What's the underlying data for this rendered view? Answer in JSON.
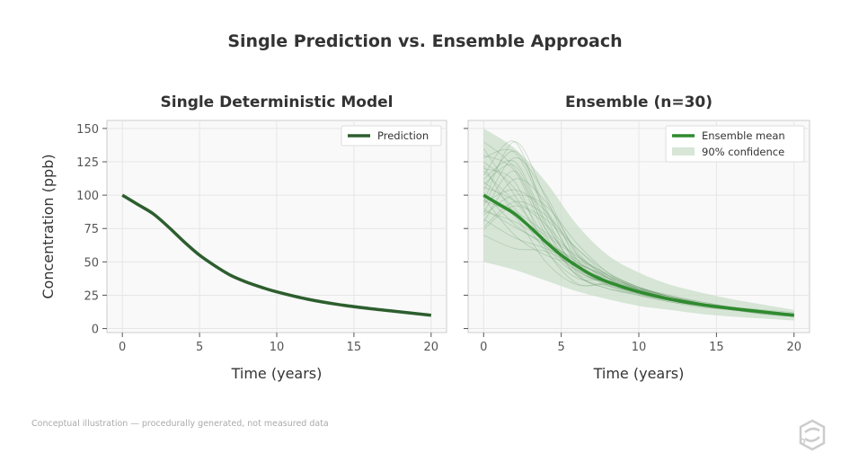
{
  "suptitle": "Single Prediction vs. Ensemble Approach",
  "footnote": "Conceptual illustration — procedurally generated, not measured data",
  "colors": {
    "prediction": "#2d5e2e",
    "ensemble_mean": "#2e8b2e",
    "band": "#c9dec9",
    "members": "#6f9a6f"
  },
  "chart_data": [
    {
      "type": "line",
      "title": "Single Deterministic Model",
      "xlabel": "Time (years)",
      "ylabel": "Concentration (ppb)",
      "xlim": [
        -1,
        21
      ],
      "ylim": [
        -3,
        156
      ],
      "xticks": [
        0,
        5,
        10,
        15,
        20
      ],
      "yticks": [
        0,
        25,
        50,
        75,
        100,
        125,
        150
      ],
      "grid": true,
      "legend": "top-right",
      "series": [
        {
          "name": "Prediction",
          "x": [
            0,
            1,
            2,
            3,
            4,
            5,
            6,
            7,
            8,
            9,
            10,
            12,
            14,
            16,
            18,
            20
          ],
          "y": [
            100,
            93,
            86,
            76,
            65,
            55,
            47,
            40,
            35,
            31,
            27.5,
            22,
            18,
            15,
            12.5,
            10
          ]
        }
      ]
    },
    {
      "type": "line",
      "title": "Ensemble (n=30)",
      "xlabel": "Time (years)",
      "xlim": [
        -1,
        21
      ],
      "ylim": [
        -3,
        156
      ],
      "xticks": [
        0,
        5,
        10,
        15,
        20
      ],
      "yticks": [
        0,
        25,
        50,
        75,
        100,
        125,
        150
      ],
      "grid": true,
      "legend": "top-right",
      "mean": {
        "name": "Ensemble mean",
        "x": [
          0,
          1,
          2,
          3,
          4,
          5,
          6,
          7,
          8,
          9,
          10,
          12,
          14,
          16,
          18,
          20
        ],
        "y": [
          100,
          93,
          86,
          76,
          65,
          55,
          47,
          40,
          35,
          31,
          27.5,
          22,
          18,
          15,
          12.5,
          10
        ]
      },
      "band": {
        "name": "90% confidence",
        "x": [
          0,
          2,
          4,
          6,
          8,
          10,
          12,
          14,
          16,
          18,
          20
        ],
        "upper": [
          150,
          135,
          110,
          78,
          55,
          42,
          33,
          27,
          22,
          18,
          14
        ],
        "lower": [
          50,
          44,
          36,
          28,
          22,
          17,
          14,
          11,
          9,
          7.5,
          6
        ]
      },
      "members_x": [
        0,
        2,
        4,
        6,
        8,
        10,
        12,
        14,
        16,
        18,
        20
      ],
      "members": [
        [
          112,
          125,
          80,
          45,
          34,
          28,
          22,
          18,
          15,
          12,
          10
        ],
        [
          95,
          140,
          98,
          52,
          36,
          27,
          21,
          17,
          14,
          12,
          9
        ],
        [
          130,
          118,
          70,
          40,
          30,
          26,
          21,
          17,
          15,
          13,
          11
        ],
        [
          88,
          80,
          66,
          50,
          38,
          29,
          23,
          19,
          16,
          13,
          10
        ],
        [
          104,
          133,
          90,
          48,
          32,
          25,
          20,
          16,
          14,
          11,
          9
        ],
        [
          76,
          95,
          85,
          60,
          40,
          30,
          24,
          20,
          16,
          13,
          11
        ],
        [
          120,
          110,
          60,
          34,
          33,
          28,
          22,
          18,
          15,
          12,
          10
        ],
        [
          98,
          70,
          55,
          48,
          40,
          31,
          24,
          19,
          15,
          12,
          9
        ],
        [
          140,
          120,
          75,
          44,
          34,
          27,
          22,
          18,
          15,
          13,
          10
        ],
        [
          85,
          100,
          92,
          64,
          42,
          30,
          23,
          18,
          15,
          12,
          10
        ],
        [
          110,
          90,
          58,
          38,
          36,
          30,
          24,
          19,
          15,
          12,
          9
        ],
        [
          92,
          128,
          100,
          56,
          35,
          26,
          21,
          17,
          14,
          12,
          10
        ],
        [
          125,
          105,
          68,
          50,
          38,
          29,
          22,
          18,
          15,
          12,
          10
        ],
        [
          70,
          60,
          58,
          46,
          36,
          29,
          23,
          19,
          16,
          13,
          11
        ],
        [
          100,
          88,
          72,
          55,
          40,
          30,
          24,
          19,
          16,
          13,
          10
        ],
        [
          115,
          140,
          85,
          42,
          30,
          25,
          20,
          17,
          14,
          12,
          10
        ],
        [
          80,
          112,
          95,
          58,
          38,
          27,
          22,
          18,
          15,
          12,
          9
        ],
        [
          135,
          100,
          62,
          41,
          35,
          29,
          23,
          18,
          15,
          12,
          10
        ],
        [
          90,
          76,
          64,
          52,
          41,
          31,
          24,
          19,
          15,
          12,
          10
        ],
        [
          108,
          122,
          78,
          46,
          33,
          27,
          22,
          18,
          15,
          12,
          10
        ],
        [
          96,
          84,
          50,
          33,
          34,
          30,
          25,
          20,
          16,
          13,
          11
        ],
        [
          118,
          96,
          82,
          60,
          42,
          31,
          23,
          18,
          14,
          11,
          9
        ],
        [
          74,
          92,
          78,
          52,
          37,
          28,
          22,
          18,
          15,
          12,
          10
        ],
        [
          128,
          132,
          88,
          50,
          33,
          26,
          21,
          17,
          14,
          12,
          10
        ],
        [
          102,
          78,
          62,
          44,
          38,
          31,
          24,
          19,
          15,
          12,
          10
        ],
        [
          87,
          118,
          74,
          40,
          32,
          27,
          22,
          18,
          16,
          14,
          12
        ],
        [
          122,
          86,
          70,
          54,
          40,
          29,
          22,
          17,
          14,
          11,
          9
        ],
        [
          94,
          104,
          88,
          56,
          38,
          28,
          23,
          19,
          16,
          13,
          10
        ],
        [
          106,
          95,
          66,
          43,
          35,
          29,
          23,
          19,
          16,
          13,
          11
        ],
        [
          82,
          68,
          60,
          49,
          39,
          30,
          24,
          19,
          15,
          12,
          10
        ]
      ]
    }
  ]
}
